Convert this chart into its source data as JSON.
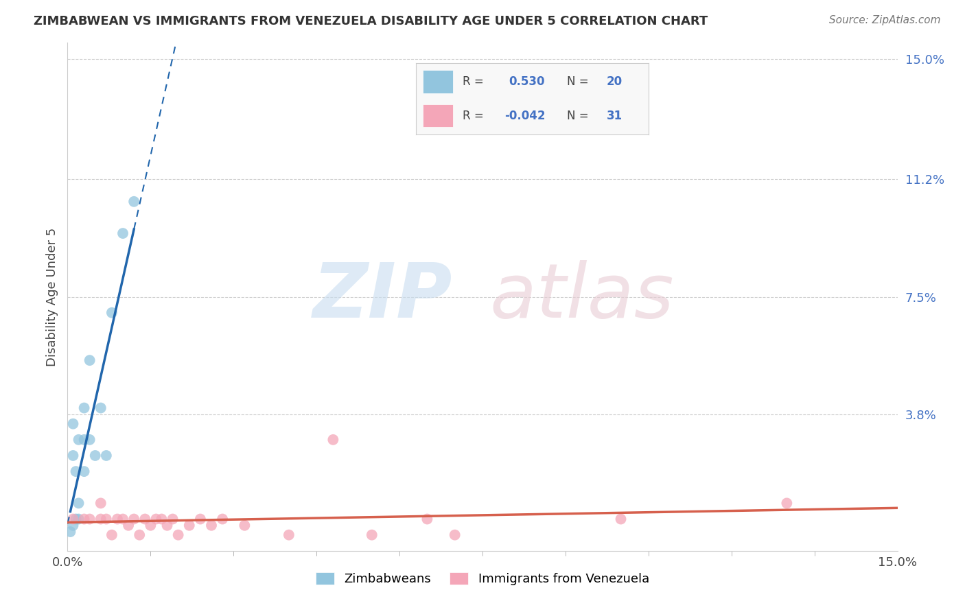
{
  "title": "ZIMBABWEAN VS IMMIGRANTS FROM VENEZUELA DISABILITY AGE UNDER 5 CORRELATION CHART",
  "source": "Source: ZipAtlas.com",
  "ylabel": "Disability Age Under 5",
  "xlim": [
    0.0,
    0.15
  ],
  "ylim": [
    -0.005,
    0.155
  ],
  "ytick_vals": [
    0.038,
    0.075,
    0.112,
    0.15
  ],
  "ytick_labels": [
    "3.8%",
    "7.5%",
    "11.2%",
    "15.0%"
  ],
  "blue_color": "#92c5de",
  "pink_color": "#f4a6b8",
  "blue_line_color": "#2166ac",
  "pink_line_color": "#d6604d",
  "zimbabwean_x": [
    0.0005,
    0.001,
    0.001,
    0.001,
    0.0015,
    0.0015,
    0.002,
    0.002,
    0.002,
    0.003,
    0.003,
    0.003,
    0.004,
    0.004,
    0.005,
    0.006,
    0.007,
    0.008,
    0.01,
    0.012
  ],
  "zimbabwean_y": [
    0.001,
    0.025,
    0.035,
    0.003,
    0.005,
    0.02,
    0.005,
    0.01,
    0.03,
    0.02,
    0.03,
    0.04,
    0.03,
    0.055,
    0.025,
    0.04,
    0.025,
    0.07,
    0.095,
    0.105
  ],
  "venezuela_x": [
    0.001,
    0.003,
    0.004,
    0.006,
    0.006,
    0.007,
    0.008,
    0.009,
    0.01,
    0.011,
    0.012,
    0.013,
    0.014,
    0.015,
    0.016,
    0.017,
    0.018,
    0.019,
    0.02,
    0.022,
    0.024,
    0.026,
    0.028,
    0.032,
    0.04,
    0.048,
    0.055,
    0.065,
    0.07,
    0.1,
    0.13
  ],
  "venezuela_y": [
    0.005,
    0.005,
    0.005,
    0.01,
    0.005,
    0.005,
    0.0,
    0.005,
    0.005,
    0.003,
    0.005,
    0.0,
    0.005,
    0.003,
    0.005,
    0.005,
    0.003,
    0.005,
    0.0,
    0.003,
    0.005,
    0.003,
    0.005,
    0.003,
    0.0,
    0.03,
    0.0,
    0.005,
    0.0,
    0.005,
    0.01
  ]
}
